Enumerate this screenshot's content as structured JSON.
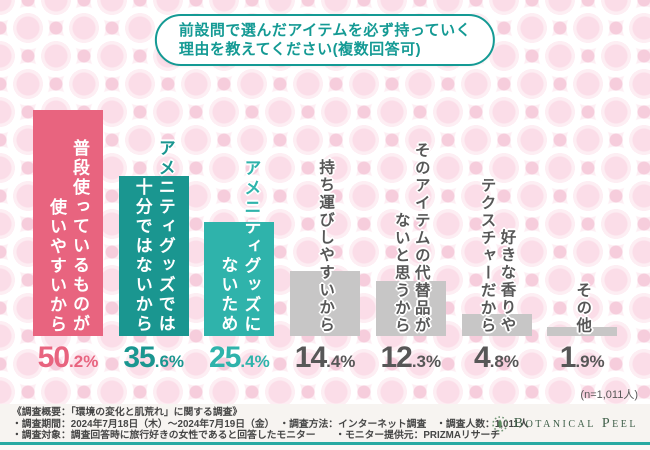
{
  "title": {
    "line1": "前設問で選んだアイテムを必ず持っていく",
    "line2": "理由を教えてください(複数回答可)"
  },
  "colors": {
    "pink": "#e8647f",
    "tealDark": "#1a9690",
    "tealLight": "#2fb3ab",
    "grayBar": "#c7c6c6",
    "grayText": "#575757",
    "titleTeal": "#149a94",
    "footerLine": "#2aa9a2"
  },
  "chart_data": {
    "type": "bar",
    "title": "前設問で選んだアイテムを必ず持っていく理由を教えてください(複数回答可)",
    "categories": [
      "普段使っているものが使いやすいから",
      "アメニティグッズでは十分ではないから",
      "アメニティグッズにないため",
      "持ち運びしやすいから",
      "そのアイテムの代替品がないと思うから",
      "好きな香りやテクスチャーだから",
      "その他"
    ],
    "values": [
      50.2,
      35.6,
      25.4,
      14.4,
      12.3,
      4.8,
      1.9
    ],
    "unit": "%",
    "ylim": [
      0,
      55
    ],
    "grid": false,
    "legend": "none",
    "bar_colors": [
      "#e8647f",
      "#1a9690",
      "#2fb3ab",
      "#c7c6c6",
      "#c7c6c6",
      "#c7c6c6",
      "#c7c6c6"
    ],
    "sample_note": "(n=1,011人)"
  },
  "bars": [
    {
      "color": "pink",
      "pct_int": "50",
      "pct_rest": ".2%",
      "columns": [
        [
          {
            "t": "普段使っているものが",
            "s": "white"
          }
        ],
        [
          {
            "t": "使いやすいから",
            "s": "white"
          }
        ]
      ]
    },
    {
      "color": "tealDark",
      "pct_int": "35",
      "pct_rest": ".6%",
      "columns": [
        [
          {
            "t": "アメ",
            "s": "bar"
          },
          {
            "t": "ニティグッズでは",
            "s": "white"
          }
        ],
        [
          {
            "t": "十分ではないから",
            "s": "white"
          }
        ]
      ]
    },
    {
      "color": "tealLight",
      "pct_int": "25",
      "pct_rest": ".4%",
      "columns": [
        [
          {
            "t": "アメニ",
            "s": "bar"
          },
          {
            "t": "ティグッズに",
            "s": "white"
          }
        ],
        [
          {
            "t": "ないため",
            "s": "white"
          }
        ]
      ]
    },
    {
      "color": "gray",
      "pct_int": "14",
      "pct_rest": ".4%",
      "columns": [
        [
          {
            "t": "持ち運びしやすいから",
            "s": "gray"
          }
        ]
      ]
    },
    {
      "color": "gray",
      "pct_int": "12",
      "pct_rest": ".3%",
      "columns": [
        [
          {
            "t": "そのアイテムの代替品が",
            "s": "gray"
          }
        ],
        [
          {
            "t": "ないと思うから",
            "s": "gray"
          }
        ]
      ]
    },
    {
      "color": "gray",
      "pct_int": "4",
      "pct_rest": ".8%",
      "columns": [
        [
          {
            "t": "好きな香りや",
            "s": "gray"
          }
        ],
        [
          {
            "t": "テクスチャーだから",
            "s": "gray"
          }
        ]
      ]
    },
    {
      "color": "gray",
      "pct_int": "1",
      "pct_rest": ".9%",
      "columns": [
        [
          {
            "t": "その他",
            "s": "gray"
          }
        ]
      ]
    }
  ],
  "footer": {
    "heading": "《調査概要：「環境の変化と肌荒れ」に関する調査》",
    "line2": "・調査期間：2024年7月18日（木）～2024年7月19日（金）　・調査方法：インターネット調査　・調査人数：1,011人",
    "line3": "・調査対象：調査回答時に旅行好きの女性であると回答したモニター　　・モニター提供元：PRIZMAリサーチ",
    "logo_text": "Botanical Peel"
  }
}
